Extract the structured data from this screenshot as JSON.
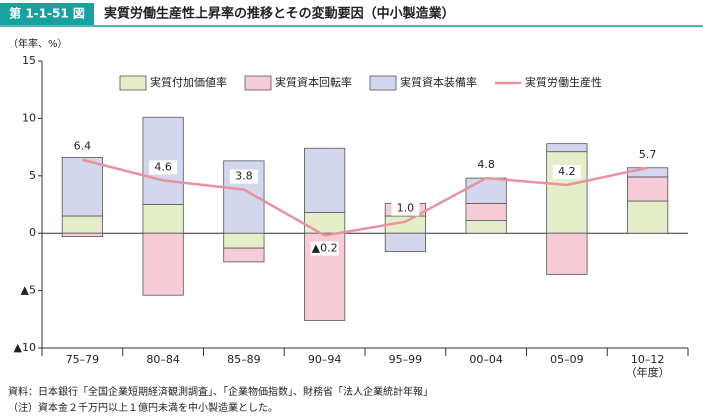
{
  "figure_label": "第 1-1-51 図",
  "chart_data": {
    "type": "stacked-bar-line",
    "title": "実質労働生産性上昇率の推移とその変動要因（中小製造業）",
    "y_unit": "（年率、%）",
    "x_label": "（年度）",
    "categories": [
      "75–79",
      "80–84",
      "85–89",
      "90–94",
      "95–99",
      "00–04",
      "05–09",
      "10–12"
    ],
    "series": [
      {
        "name": "実質付加価値率",
        "color": "#e4efc9",
        "values": [
          1.5,
          2.5,
          -1.3,
          1.8,
          1.5,
          1.1,
          7.1,
          2.8
        ]
      },
      {
        "name": "実質資本回転率",
        "color": "#f6cdd6",
        "values": [
          -0.3,
          -5.4,
          -1.2,
          -7.6,
          1.1,
          1.5,
          -3.6,
          2.1
        ]
      },
      {
        "name": "実質資本装備率",
        "color": "#d3d7ee",
        "values": [
          5.1,
          7.6,
          6.3,
          5.6,
          -1.6,
          2.2,
          0.7,
          0.8
        ]
      },
      {
        "name": "実質労働生産性",
        "color": "#e8939d",
        "type": "line",
        "values": [
          6.4,
          4.6,
          3.8,
          -0.2,
          1.0,
          4.8,
          4.2,
          5.7
        ],
        "value_labels": [
          "6.4",
          "4.6",
          "3.8",
          "▲0.2",
          "1.0",
          "4.8",
          "4.2",
          "5.7"
        ]
      }
    ],
    "ylim": [
      -10,
      15
    ],
    "yticks": [
      {
        "value": -10,
        "label": "▲10"
      },
      {
        "value": -5,
        "label": "▲5"
      },
      0,
      5,
      10,
      15
    ]
  },
  "notes": [
    "資料：日本銀行「全国企業短期経済観測調査」、「企業物価指数」、財務省「法人企業統計年報」",
    "（注）資本金２千万円以上１億円未満を中小製造業とした。"
  ]
}
